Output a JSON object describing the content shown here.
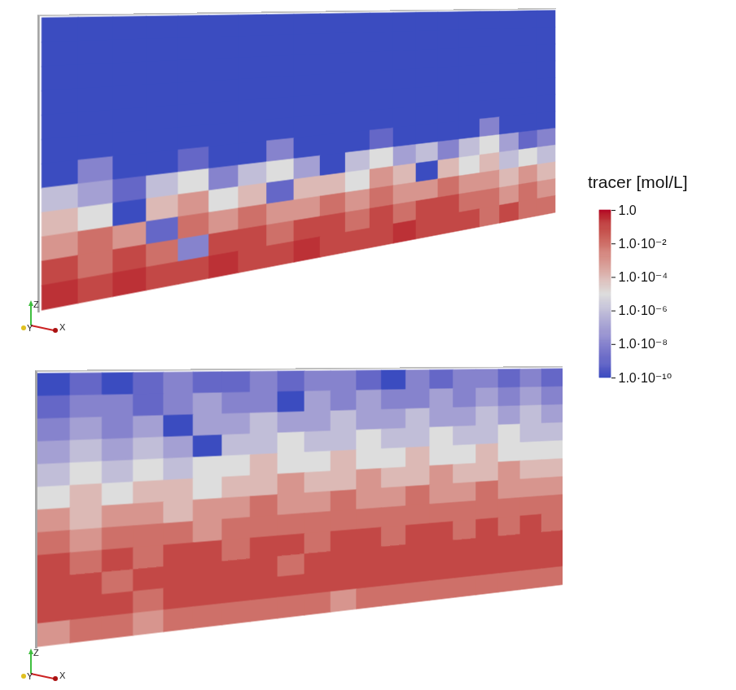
{
  "chart_data": {
    "type": "heatmap",
    "panels": [
      {
        "axes_labels": [
          "Z",
          "Y",
          "X"
        ],
        "values": [
          [
            1e-10,
            1e-10,
            1e-10,
            1e-10,
            1e-10,
            1e-10,
            1e-10,
            1e-10,
            1e-10,
            1e-10,
            1e-10,
            1e-10,
            1e-10,
            1e-10,
            1e-10,
            1e-10,
            1e-10,
            1e-10,
            1e-10,
            1e-10
          ],
          [
            1e-10,
            1e-10,
            1e-10,
            1e-10,
            1e-10,
            1e-10,
            1e-10,
            1e-10,
            1e-10,
            1e-10,
            1e-10,
            1e-10,
            1e-10,
            1e-10,
            1e-10,
            1e-10,
            1e-10,
            1e-10,
            1e-10,
            1e-10
          ],
          [
            1e-10,
            1e-10,
            1e-10,
            1e-10,
            1e-10,
            1e-10,
            1e-10,
            1e-10,
            1e-10,
            1e-10,
            1e-10,
            1e-10,
            1e-10,
            1e-10,
            1e-10,
            1e-10,
            1e-10,
            1e-10,
            1e-10,
            1e-10
          ],
          [
            1e-10,
            1e-10,
            1e-10,
            1e-10,
            1e-10,
            1e-10,
            1e-10,
            1e-10,
            1e-10,
            1e-10,
            1e-10,
            1e-10,
            1e-10,
            1e-10,
            1e-10,
            1e-10,
            1e-10,
            1e-10,
            1e-10,
            1e-10
          ],
          [
            1e-10,
            1e-10,
            1e-10,
            1e-10,
            1e-10,
            1e-10,
            1e-10,
            1e-10,
            1e-10,
            1e-10,
            1e-10,
            1e-10,
            1e-10,
            1e-10,
            1e-10,
            1e-10,
            1e-10,
            1e-10,
            1e-10,
            1e-10
          ],
          [
            1e-10,
            1e-10,
            1e-10,
            1e-10,
            1e-10,
            1e-10,
            1e-10,
            1e-10,
            1e-10,
            1e-10,
            1e-10,
            1e-10,
            1e-10,
            1e-10,
            1e-10,
            1e-10,
            1e-10,
            1e-10,
            1e-10,
            1e-10
          ],
          [
            1e-10,
            1e-08,
            1e-10,
            1e-10,
            1e-09,
            1e-10,
            1e-10,
            1e-08,
            1e-10,
            1e-10,
            1e-10,
            1e-09,
            1e-10,
            1e-10,
            1e-10,
            1e-10,
            1e-08,
            1e-10,
            1e-10,
            1e-10
          ],
          [
            1e-06,
            1e-07,
            1e-09,
            1e-06,
            1e-05,
            1e-08,
            1e-06,
            1e-05,
            1e-07,
            1e-10,
            1e-06,
            1e-05,
            1e-07,
            1e-06,
            1e-08,
            1e-06,
            1e-05,
            1e-07,
            1e-09,
            1e-08
          ],
          [
            0.0001,
            1e-05,
            1e-10,
            0.0001,
            0.001,
            1e-05,
            0.0001,
            1e-09,
            0.0001,
            0.0001,
            1e-05,
            0.001,
            0.0001,
            1e-10,
            0.0001,
            1e-05,
            0.0001,
            1e-06,
            1e-05,
            1e-06
          ],
          [
            0.001,
            0.01,
            0.001,
            1e-09,
            0.01,
            0.001,
            0.01,
            0.001,
            0.001,
            0.01,
            0.001,
            0.01,
            0.001,
            0.001,
            0.01,
            0.001,
            0.001,
            0.0001,
            0.001,
            0.0001
          ],
          [
            0.1,
            0.01,
            0.1,
            0.01,
            1e-08,
            0.1,
            0.1,
            0.01,
            0.1,
            0.1,
            0.01,
            0.1,
            0.01,
            0.1,
            0.1,
            0.01,
            0.01,
            0.001,
            0.01,
            0.001
          ],
          [
            0.3,
            0.1,
            0.3,
            0.1,
            0.1,
            0.3,
            0.1,
            0.1,
            0.3,
            0.1,
            0.1,
            0.1,
            0.3,
            0.1,
            0.1,
            0.1,
            0.01,
            0.1,
            0.01,
            0.01
          ]
        ]
      },
      {
        "axes_labels": [
          "Z",
          "Y",
          "X"
        ],
        "values": [
          [
            1e-10,
            1e-09,
            1e-10,
            1e-09,
            1e-08,
            1e-09,
            1e-09,
            1e-08,
            1e-09,
            1e-08,
            1e-08,
            1e-09,
            1e-10,
            1e-08,
            1e-09,
            1e-08,
            1e-08,
            1e-09,
            1e-08,
            1e-09
          ],
          [
            1e-09,
            1e-08,
            1e-08,
            1e-09,
            1e-08,
            1e-07,
            1e-08,
            1e-08,
            1e-10,
            1e-07,
            1e-08,
            1e-07,
            1e-08,
            1e-08,
            1e-07,
            1e-08,
            1e-07,
            1e-08,
            1e-07,
            1e-08
          ],
          [
            1e-08,
            1e-07,
            1e-08,
            1e-07,
            1e-10,
            1e-07,
            1e-07,
            1e-06,
            1e-07,
            1e-07,
            1e-06,
            1e-07,
            1e-07,
            1e-06,
            1e-07,
            1e-07,
            1e-06,
            1e-07,
            1e-06,
            1e-07
          ],
          [
            1e-07,
            1e-06,
            1e-07,
            1e-06,
            1e-07,
            1e-10,
            1e-06,
            1e-06,
            1e-05,
            1e-06,
            1e-06,
            1e-05,
            1e-06,
            1e-06,
            1e-05,
            1e-06,
            1e-06,
            1e-05,
            1e-06,
            1e-06
          ],
          [
            1e-06,
            1e-05,
            1e-06,
            1e-05,
            1e-06,
            1e-05,
            1e-05,
            0.0001,
            1e-05,
            1e-05,
            0.0001,
            1e-05,
            1e-05,
            0.0001,
            1e-05,
            1e-05,
            0.0001,
            1e-05,
            1e-05,
            1e-05
          ],
          [
            1e-05,
            0.0001,
            1e-05,
            0.0001,
            0.0001,
            1e-05,
            0.0001,
            0.0001,
            0.001,
            0.0001,
            0.0001,
            0.001,
            0.0001,
            0.0001,
            0.001,
            0.0001,
            0.0001,
            0.001,
            0.0001,
            0.0001
          ],
          [
            0.001,
            0.0001,
            0.001,
            0.001,
            0.0001,
            0.001,
            0.001,
            0.01,
            0.001,
            0.001,
            0.01,
            0.001,
            0.001,
            0.01,
            0.001,
            0.001,
            0.01,
            0.001,
            0.001,
            0.001
          ],
          [
            0.01,
            0.001,
            0.01,
            0.01,
            0.01,
            0.001,
            0.01,
            0.01,
            0.01,
            0.01,
            0.01,
            0.01,
            0.01,
            0.01,
            0.01,
            0.01,
            0.01,
            0.01,
            0.01,
            0.01
          ],
          [
            0.1,
            0.01,
            0.1,
            0.01,
            0.1,
            0.1,
            0.01,
            0.1,
            0.1,
            0.01,
            0.1,
            0.1,
            0.01,
            0.1,
            0.1,
            0.01,
            0.1,
            0.01,
            0.1,
            0.01
          ],
          [
            0.1,
            0.1,
            0.01,
            0.1,
            0.1,
            0.1,
            0.1,
            0.1,
            0.01,
            0.1,
            0.1,
            0.1,
            0.1,
            0.1,
            0.1,
            0.1,
            0.1,
            0.1,
            0.1,
            0.1
          ],
          [
            0.1,
            0.1,
            0.1,
            0.01,
            0.1,
            0.1,
            0.1,
            0.1,
            0.1,
            0.1,
            0.1,
            0.1,
            0.1,
            0.1,
            0.1,
            0.1,
            0.1,
            0.1,
            0.1,
            0.1
          ],
          [
            0.001,
            0.01,
            0.01,
            0.001,
            0.01,
            0.01,
            0.01,
            0.01,
            0.01,
            0.01,
            0.001,
            0.01,
            0.01,
            0.01,
            0.01,
            0.01,
            0.01,
            0.01,
            0.01,
            0.01
          ]
        ]
      }
    ],
    "colorbar": {
      "label": "tracer [mol/L]",
      "range": [
        1e-10,
        1
      ],
      "log": true,
      "colors": [
        "#3b4cc0",
        "#dddddd",
        "#b40426"
      ],
      "ticks": [
        {
          "value": 1,
          "label": "1.0"
        },
        {
          "value": 0.01,
          "label": "1.0·10⁻²"
        },
        {
          "value": 0.0001,
          "label": "1.0·10⁻⁴"
        },
        {
          "value": 1e-06,
          "label": "1.0·10⁻⁶"
        },
        {
          "value": 1e-08,
          "label": "1.0·10⁻⁸"
        },
        {
          "value": 1e-10,
          "label": "1.0·10⁻¹⁰"
        }
      ]
    }
  }
}
